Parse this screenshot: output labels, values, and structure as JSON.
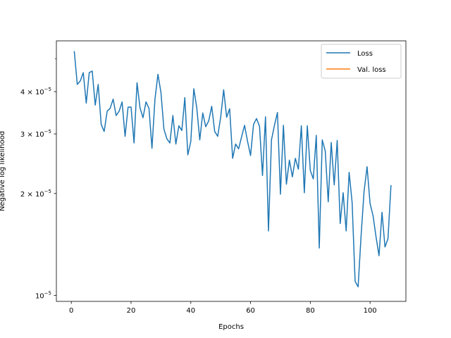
{
  "chart_data": {
    "type": "line",
    "title": "",
    "xlabel": "Epochs",
    "ylabel": "Negative log likelihood",
    "xlim": [
      -5,
      112
    ],
    "ylim": [
      9.6e-06,
      5.65e-05
    ],
    "yscale": "log",
    "x_ticks": [
      0,
      20,
      40,
      60,
      80,
      100
    ],
    "y_ticks": [
      {
        "value": 1e-05,
        "label": "10",
        "exp": "−5",
        "prefix": ""
      },
      {
        "value": 2e-05,
        "label": "10",
        "exp": "−5",
        "prefix": "2 × "
      },
      {
        "value": 3e-05,
        "label": "10",
        "exp": "−5",
        "prefix": "3 × "
      },
      {
        "value": 4e-05,
        "label": "10",
        "exp": "−5",
        "prefix": "4 × "
      }
    ],
    "y_minor_ticks": [
      5e-05
    ],
    "grid": false,
    "legend_position": "upper right",
    "series": [
      {
        "name": "Loss",
        "color": "#1f77b4",
        "x": [
          1,
          2,
          3,
          4,
          5,
          6,
          7,
          8,
          9,
          10,
          11,
          12,
          13,
          14,
          15,
          16,
          17,
          18,
          19,
          20,
          21,
          22,
          23,
          24,
          25,
          26,
          27,
          28,
          29,
          30,
          31,
          32,
          33,
          34,
          35,
          36,
          37,
          38,
          39,
          40,
          41,
          42,
          43,
          44,
          45,
          46,
          47,
          48,
          49,
          50,
          51,
          52,
          53,
          54,
          55,
          56,
          57,
          58,
          59,
          60,
          61,
          62,
          63,
          64,
          65,
          66,
          67,
          68,
          69,
          70,
          71,
          72,
          73,
          74,
          75,
          76,
          77,
          78,
          79,
          80,
          81,
          82,
          83,
          84,
          85,
          86,
          87,
          88,
          89,
          90,
          91,
          92,
          93,
          94,
          95,
          96,
          97,
          98,
          99,
          100,
          101,
          102,
          103,
          104,
          105,
          106,
          107
        ],
        "values": [
          5.25e-05,
          4.2e-05,
          4.3e-05,
          4.55e-05,
          3.7e-05,
          4.55e-05,
          4.6e-05,
          3.65e-05,
          4.2e-05,
          3.2e-05,
          3.05e-05,
          3.5e-05,
          3.57e-05,
          3.8e-05,
          3.4e-05,
          3.5e-05,
          3.73e-05,
          2.95e-05,
          3.6e-05,
          3.6e-05,
          2.82e-05,
          4.25e-05,
          3.58e-05,
          3.35e-05,
          3.73e-05,
          3.57e-05,
          2.72e-05,
          3.8e-05,
          4.5e-05,
          3.98e-05,
          3.1e-05,
          2.9e-05,
          2.82e-05,
          3.4e-05,
          2.8e-05,
          3.17e-05,
          3.07e-05,
          3.84e-05,
          2.6e-05,
          2.85e-05,
          4.08e-05,
          3.58e-05,
          2.88e-05,
          3.46e-05,
          3.15e-05,
          3.28e-05,
          3.62e-05,
          3.05e-05,
          2.95e-05,
          3.36e-05,
          4.05e-05,
          3.36e-05,
          3.56e-05,
          2.54e-05,
          2.8e-05,
          2.71e-05,
          2.94e-05,
          3.18e-05,
          2.85e-05,
          2.59e-05,
          3.2e-05,
          3.33e-05,
          3.16e-05,
          2.26e-05,
          3.37e-05,
          1.55e-05,
          2.88e-05,
          3.18e-05,
          3.47e-05,
          1.99e-05,
          3.18e-05,
          2.13e-05,
          2.51e-05,
          2.24e-05,
          2.54e-05,
          2.36e-05,
          3.17e-05,
          2.01e-05,
          3.17e-05,
          2.34e-05,
          2.21e-05,
          2.97e-05,
          1.38e-05,
          2.88e-05,
          2.67e-05,
          1.89e-05,
          2.83e-05,
          2.12e-05,
          2.87e-05,
          1.63e-05,
          2.01e-05,
          1.55e-05,
          2.31e-05,
          1.88e-05,
          1.1e-05,
          1.06e-05,
          1.5e-05,
          2.03e-05,
          2.4e-05,
          1.87e-05,
          1.72e-05,
          1.49e-05,
          1.31e-05,
          1.76e-05,
          1.39e-05,
          1.47e-05,
          2.11e-05
        ]
      },
      {
        "name": "Val. loss",
        "color": "#ff7f0e",
        "x": [],
        "values": []
      }
    ]
  }
}
